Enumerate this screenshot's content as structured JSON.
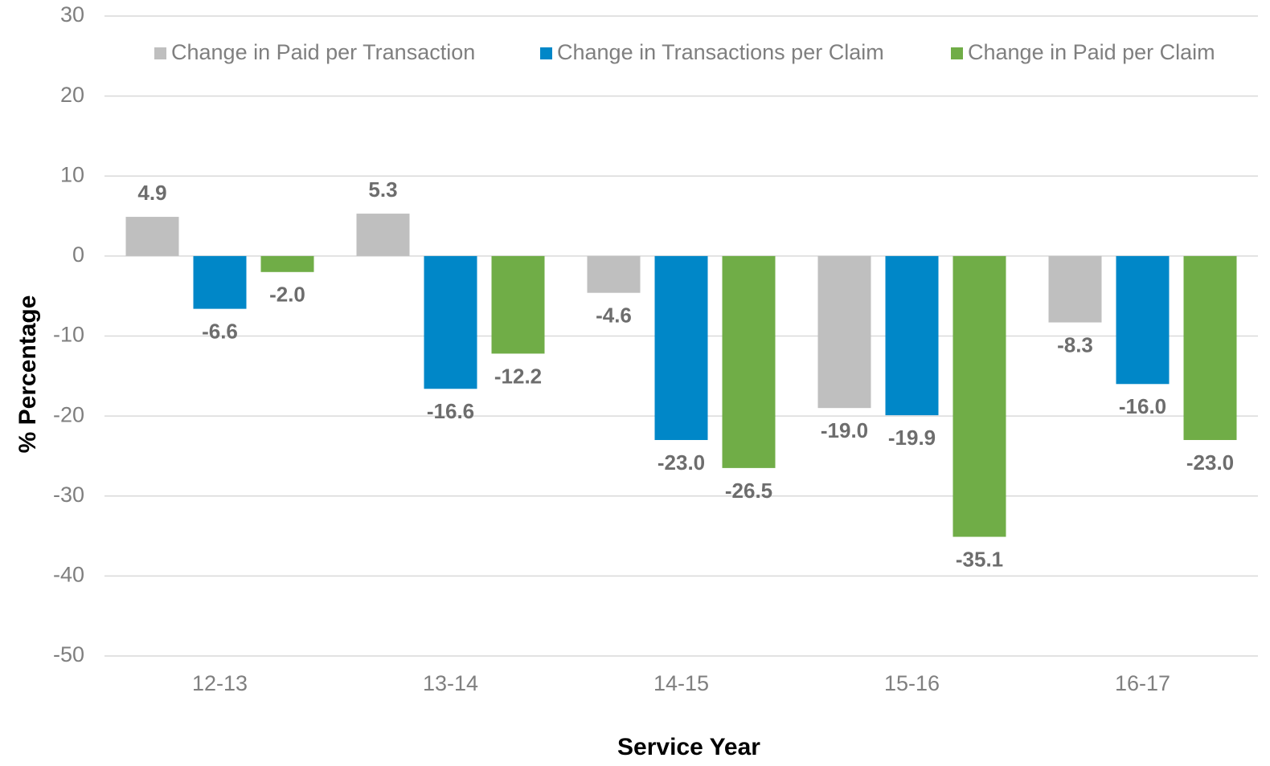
{
  "chart_data": {
    "type": "bar",
    "x_label": "Service Year",
    "y_label": "% Percentage",
    "categories": [
      "12-13",
      "13-14",
      "14-15",
      "15-16",
      "16-17"
    ],
    "series": [
      {
        "name": "Change in Paid per Transaction",
        "color": "#bfbfbf",
        "values": [
          4.9,
          5.3,
          -4.6,
          -19,
          -8.3
        ],
        "value_labels": [
          "4.9",
          "5.3",
          "-4.6",
          "-19.0",
          "-8.3"
        ]
      },
      {
        "name": "Change in Transactions per Claim",
        "color": "#0087c8",
        "values": [
          -6.6,
          -16.6,
          -23,
          -19.9,
          -16
        ],
        "value_labels": [
          "-6.6",
          "-16.6",
          "-23.0",
          "-19.9",
          "-16.0"
        ]
      },
      {
        "name": "Change in Paid per Claim",
        "color": "#70ad47",
        "values": [
          -2,
          -12.2,
          -26.5,
          -35.1,
          -23
        ],
        "value_labels": [
          "-2.0",
          "-12.2",
          "-26.5",
          "-35.1",
          "-23.0"
        ]
      }
    ],
    "ylim": [
      -50,
      30
    ],
    "yticks": [
      -50,
      -40,
      -30,
      -20,
      -10,
      0,
      10,
      20,
      30
    ],
    "grid": true,
    "legend": "top"
  }
}
